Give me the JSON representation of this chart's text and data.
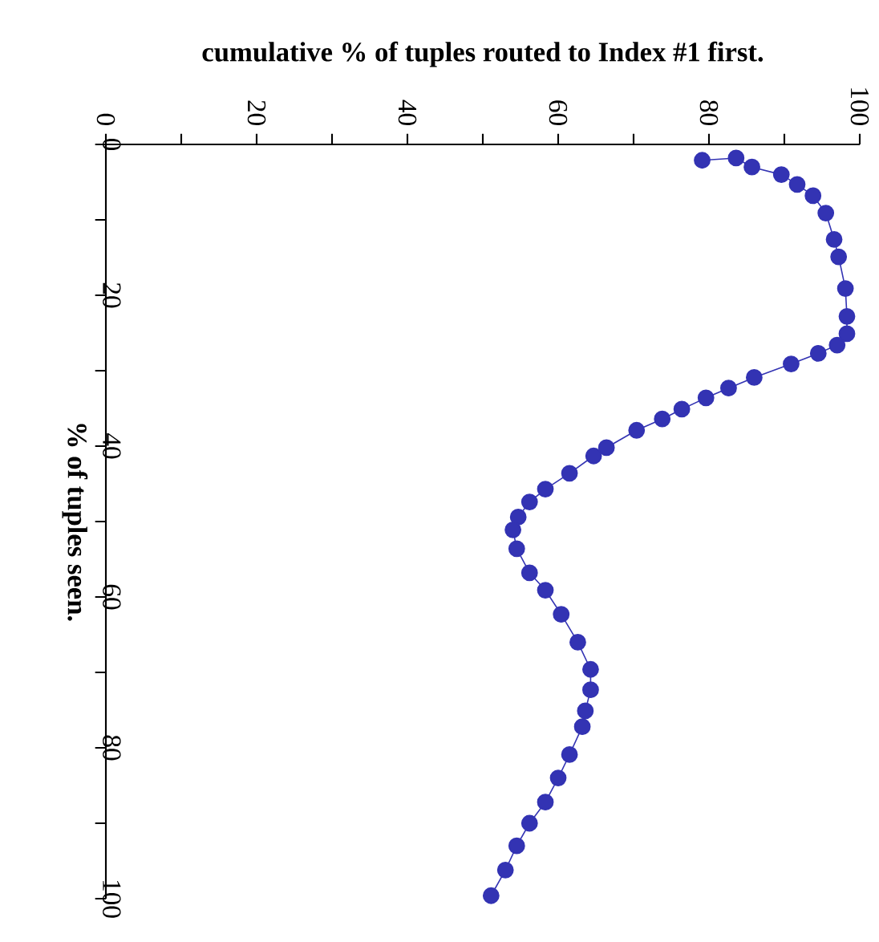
{
  "chart_data": {
    "type": "line",
    "xlabel": "cumulative % of tuples routed to Index #1 first.",
    "ylabel": "% of tuples seen.",
    "xlim": [
      0,
      100
    ],
    "ylim": [
      100,
      0
    ],
    "xticks": [
      0,
      {
        "value": 10,
        "label": null
      },
      20,
      {
        "value": 30,
        "label": null
      },
      40,
      {
        "value": 50,
        "label": null
      },
      60,
      {
        "value": 70,
        "label": null
      },
      80,
      {
        "value": 90,
        "label": null
      },
      100
    ],
    "yticks": [
      0,
      {
        "value": 10,
        "label": null
      },
      20,
      {
        "value": 30,
        "label": null
      },
      40,
      {
        "value": 50,
        "label": null
      },
      60,
      {
        "value": 70,
        "label": null
      },
      80,
      {
        "value": 90,
        "label": null
      },
      100
    ],
    "marker": "circle",
    "line_style": "solid",
    "series": [
      {
        "color": "#3333b3",
        "x": [
          79.1,
          83.6,
          85.7,
          89.6,
          91.7,
          93.8,
          95.5,
          96.6,
          97.2,
          98.1,
          98.3,
          98.3,
          97.0,
          94.5,
          90.9,
          86.0,
          82.6,
          79.6,
          76.4,
          73.8,
          70.4,
          66.4,
          64.7,
          61.5,
          58.3,
          56.2,
          54.7,
          54.0,
          54.5,
          56.2,
          58.3,
          60.4,
          62.6,
          64.3,
          64.3,
          63.6,
          63.2,
          61.5,
          60.0,
          58.3,
          56.2,
          54.5,
          53.0,
          51.1
        ],
        "values": [
          2.1,
          1.8,
          3.0,
          4.0,
          5.3,
          6.8,
          9.1,
          12.6,
          14.9,
          19.1,
          22.8,
          25.1,
          26.6,
          27.7,
          29.1,
          30.9,
          32.3,
          33.6,
          35.1,
          36.4,
          37.9,
          40.2,
          41.3,
          43.6,
          45.7,
          47.4,
          49.4,
          51.1,
          53.6,
          56.8,
          59.1,
          62.3,
          66.0,
          69.6,
          72.3,
          75.1,
          77.2,
          80.9,
          84.0,
          87.2,
          90.0,
          93.0,
          96.2,
          99.6
        ]
      }
    ]
  }
}
